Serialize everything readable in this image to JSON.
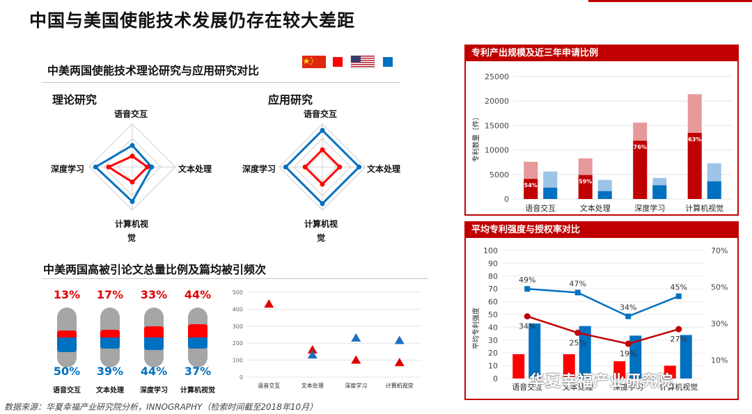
{
  "page": {
    "title": "中国与美国使能技术发展仍存在较大差距",
    "footer": "数据来源：华夏幸福产业研究院分析，INNOGRAPHY（检索时间截至2018年10月）",
    "watermark": "华夏幸福产业研究院"
  },
  "colors": {
    "china": "#c00000",
    "china_light": "#e6999a",
    "china_bright": "#ff0000",
    "us": "#0070c0",
    "us_light": "#9dc3e6"
  },
  "radar_section": {
    "title": "中美两国使能技术理论研究与应用研究对比",
    "legend": [
      {
        "flag": "china-flag-icon",
        "swatch": "#ff0000"
      },
      {
        "flag": "us-flag-icon",
        "swatch": "#0070c0"
      }
    ],
    "charts": [
      {
        "title": "理论研究",
        "axes": [
          "语音交互",
          "文本处理",
          "计算机视觉",
          "深度学习"
        ],
        "china": [
          0.25,
          0.35,
          0.35,
          0.55
        ],
        "us": [
          0.5,
          0.45,
          0.8,
          0.85
        ]
      },
      {
        "title": "应用研究",
        "axes": [
          "语音交互",
          "文本处理",
          "计算机视觉",
          "深度学习"
        ],
        "china": [
          0.4,
          0.4,
          0.4,
          0.4
        ],
        "us": [
          0.85,
          0.85,
          0.85,
          0.85
        ]
      }
    ]
  },
  "citation_section": {
    "title": "中美两国高被引论文总量比例及篇均被引频次",
    "categories": [
      "语音交互",
      "文本处理",
      "深度学习",
      "计算机视觉"
    ],
    "china_share": [
      "13%",
      "17%",
      "33%",
      "44%"
    ],
    "us_share": [
      "50%",
      "39%",
      "44%",
      "37%"
    ],
    "china_share_values": [
      13,
      17,
      33,
      44
    ],
    "us_share_values": [
      50,
      39,
      44,
      37
    ]
  },
  "chart_data": [
    {
      "type": "scatter",
      "title": "",
      "categories": [
        "语音交互",
        "文本处理",
        "深度学习",
        "计算机视觉"
      ],
      "ylim": [
        0,
        500
      ],
      "yticks": [
        "0",
        "100",
        "200",
        "300",
        "400",
        "500"
      ],
      "series": [
        {
          "color": "#e00000",
          "values": [
            430,
            160,
            100,
            85
          ]
        },
        {
          "color": "#1f6fbf",
          "values": [
            0,
            130,
            230,
            215
          ]
        }
      ]
    },
    {
      "type": "bar",
      "title": "专利产出规模及近三年申请比例",
      "categories": [
        "语音交互",
        "文本处理",
        "深度学习",
        "计算机视觉"
      ],
      "ylabel": "专利数量（件）",
      "ylim": [
        0,
        25000
      ],
      "yticks": [
        "0",
        "5000",
        "10000",
        "15000",
        "20000",
        "25000"
      ],
      "series": [
        {
          "color": "#c00000",
          "total": [
            7600,
            8300,
            15600,
            21400
          ],
          "recent": [
            4100,
            4900,
            11900,
            13500
          ],
          "recent_labels": [
            "54%",
            "59%",
            "76%",
            "63%"
          ]
        },
        {
          "color": "#0070c0",
          "total": [
            5600,
            3900,
            4300,
            7300
          ],
          "recent": [
            2300,
            1600,
            2800,
            3600
          ]
        }
      ]
    },
    {
      "type": "bar",
      "title": "平均专利强度与授权率对比",
      "categories": [
        "语音交互",
        "文本处理",
        "深度学习",
        "计算机视觉"
      ],
      "ylabel": "平均专利强度",
      "ylim": [
        0,
        100
      ],
      "yticks": [
        "0",
        "10",
        "20",
        "30",
        "40",
        "50",
        "60",
        "70",
        "80",
        "90",
        "100"
      ],
      "y2lim": [
        0,
        70
      ],
      "y2ticks": [
        "10%",
        "30%",
        "50%",
        "70%"
      ],
      "y2tick_values": [
        10,
        30,
        50,
        70
      ],
      "series": [
        {
          "kind": "bar",
          "color": "#ff0000",
          "values": [
            19,
            19,
            13.5,
            10
          ]
        },
        {
          "kind": "bar",
          "color": "#0070c0",
          "values": [
            43,
            41,
            33.5,
            34
          ]
        },
        {
          "kind": "line",
          "axis": "right",
          "color": "#0070c0",
          "values": [
            49,
            47,
            34,
            45
          ],
          "labels": [
            "49%",
            "47%",
            "34%",
            "45%"
          ]
        },
        {
          "kind": "line",
          "axis": "right",
          "color": "#c00000",
          "values": [
            34,
            25,
            19,
            27
          ],
          "labels": [
            "34%",
            "25%",
            "19%",
            "27%"
          ]
        }
      ]
    }
  ]
}
